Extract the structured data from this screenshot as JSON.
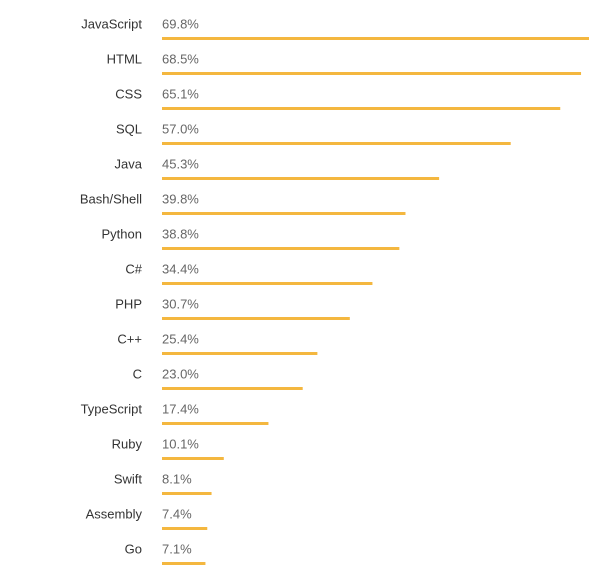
{
  "chart_data": {
    "type": "bar",
    "orientation": "horizontal",
    "categories": [
      "JavaScript",
      "HTML",
      "CSS",
      "SQL",
      "Java",
      "Bash/Shell",
      "Python",
      "C#",
      "PHP",
      "C++",
      "C",
      "TypeScript",
      "Ruby",
      "Swift",
      "Assembly",
      "Go"
    ],
    "values": [
      69.8,
      68.5,
      65.1,
      57.0,
      45.3,
      39.8,
      38.8,
      34.4,
      30.7,
      25.4,
      23.0,
      17.4,
      10.1,
      8.1,
      7.4,
      7.1
    ],
    "value_labels": [
      "69.8%",
      "68.5%",
      "65.1%",
      "57.0%",
      "45.3%",
      "39.8%",
      "38.8%",
      "34.4%",
      "30.7%",
      "25.4%",
      "23.0%",
      "17.4%",
      "10.1%",
      "8.1%",
      "7.4%",
      "7.1%"
    ],
    "color": "#f4b73f"
  }
}
